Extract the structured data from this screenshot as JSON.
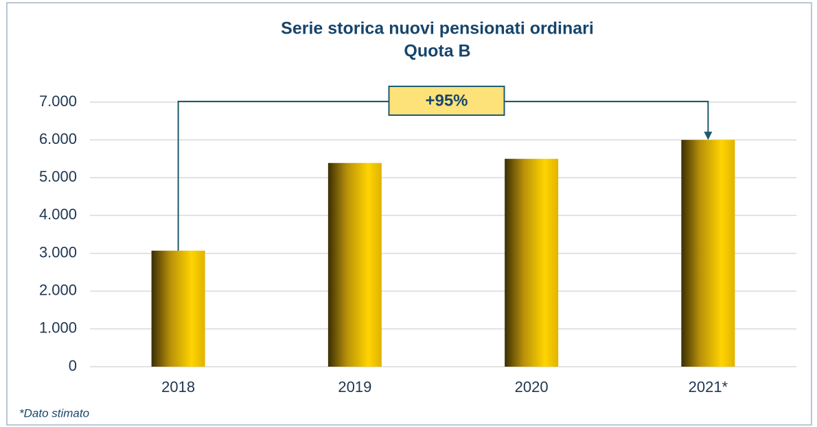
{
  "chart_data": {
    "type": "bar",
    "title": "Serie storica nuovi pensionati ordinari",
    "subtitle": "Quota B",
    "categories": [
      "2018",
      "2019",
      "2020",
      "2021*"
    ],
    "values": [
      3070,
      5390,
      5500,
      6000
    ],
    "color": "#f5c400",
    "ylim": [
      0,
      7000
    ],
    "yticks": [
      0,
      {
        "value": 1000,
        "label": "1.000"
      },
      {
        "value": 2000,
        "label": "2.000"
      },
      {
        "value": 3000,
        "label": "3.000"
      },
      {
        "value": 4000,
        "label": "4.000"
      },
      {
        "value": 5000,
        "label": "5.000"
      },
      {
        "value": 6000,
        "label": "6.000"
      },
      {
        "value": 7000,
        "label": "7.000"
      }
    ],
    "grid": true,
    "annotation": "+95%",
    "footnote": "*Dato stimato"
  }
}
